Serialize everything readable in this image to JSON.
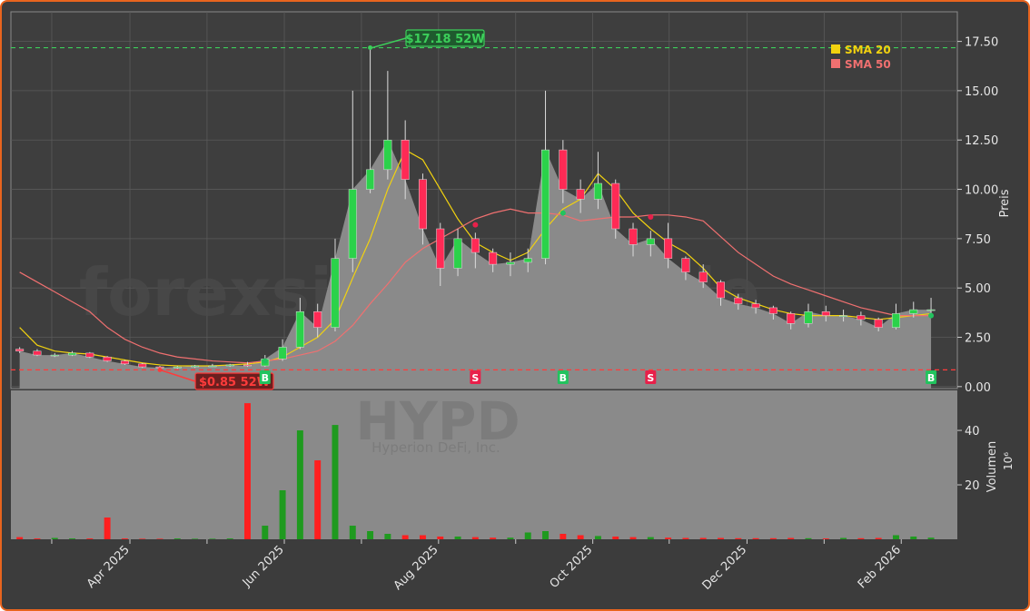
{
  "chart_data": {
    "type": "candlestick",
    "watermark": "forexsignale.trade",
    "ticker_watermark": "HYPD",
    "company_watermark": "Hyperion DeFi, Inc.",
    "y_label": "Preis",
    "volume_label": "Volumen",
    "volume_unit": "10⁶",
    "categories": [
      null,
      null,
      null,
      null,
      null,
      null,
      null,
      null,
      null,
      null,
      null,
      null,
      null,
      null,
      null,
      null,
      null,
      null,
      null,
      null,
      null,
      null,
      null,
      null,
      null,
      null,
      null,
      null,
      null,
      null,
      null,
      null,
      null,
      null,
      null,
      null,
      null,
      null,
      null,
      null,
      null,
      null,
      null,
      null,
      null,
      null,
      null,
      null,
      null,
      null,
      null,
      null,
      null
    ],
    "xlim": [
      -0.5,
      53.5
    ],
    "xticks": [
      {
        "value": 6.29,
        "label": "Apr 2025"
      },
      {
        "value": 15.1,
        "label": "Jun 2025"
      },
      {
        "value": 23.9,
        "label": "Aug 2025"
      },
      {
        "value": 32.7,
        "label": "Oct 2025"
      },
      {
        "value": 41.5,
        "label": "Dec 2025"
      },
      {
        "value": 50.3,
        "label": "Feb 2026"
      }
    ],
    "xminorticks": [
      1.83,
      10.69,
      19.5,
      28.3,
      37.06,
      45.9
    ],
    "open": [
      1.9,
      1.8,
      1.6,
      1.6,
      1.7,
      1.5,
      1.3,
      1.15,
      1.0,
      0.95,
      1.0,
      1.05,
      1.05,
      1.1,
      1.05,
      1.4,
      2.0,
      3.8,
      3.0,
      6.5,
      10.0,
      11.0,
      12.5,
      10.5,
      8.0,
      6.0,
      7.5,
      6.8,
      6.2,
      6.3,
      6.5,
      12.0,
      10.0,
      9.5,
      10.3,
      8.0,
      7.2,
      7.5,
      6.5,
      5.8,
      5.3,
      4.5,
      4.2,
      4.0,
      3.7,
      3.2,
      3.8,
      3.6,
      3.6,
      3.4,
      3.0,
      3.7,
      3.9
    ],
    "high": [
      2.0,
      1.9,
      1.7,
      1.8,
      1.75,
      1.55,
      1.35,
      1.2,
      1.05,
      1.05,
      1.1,
      1.15,
      1.15,
      1.25,
      1.6,
      2.4,
      4.5,
      4.2,
      7.5,
      15.0,
      17.18,
      16.0,
      13.5,
      10.8,
      8.3,
      8.0,
      7.8,
      7.0,
      6.8,
      7.0,
      15.0,
      12.5,
      10.5,
      11.9,
      10.5,
      8.3,
      7.9,
      8.3,
      6.6,
      6.2,
      5.4,
      4.7,
      4.4,
      4.1,
      3.8,
      4.2,
      4.1,
      3.9,
      3.8,
      3.5,
      4.2,
      4.3,
      4.5
    ],
    "low": [
      1.7,
      1.55,
      1.5,
      1.55,
      1.45,
      1.25,
      1.1,
      0.95,
      0.85,
      0.9,
      0.95,
      1.0,
      1.0,
      1.0,
      1.0,
      1.3,
      1.9,
      2.5,
      2.8,
      5.8,
      9.8,
      10.5,
      9.5,
      7.2,
      5.1,
      5.6,
      6.0,
      5.8,
      5.6,
      5.8,
      6.2,
      9.3,
      8.8,
      9.0,
      7.5,
      6.6,
      6.6,
      6.0,
      5.4,
      5.0,
      4.1,
      3.9,
      3.7,
      3.4,
      2.9,
      3.0,
      3.3,
      3.3,
      3.1,
      2.8,
      2.9,
      3.5,
      3.6
    ],
    "close": [
      1.8,
      1.6,
      1.6,
      1.7,
      1.5,
      1.3,
      1.15,
      1.0,
      0.95,
      1.0,
      1.05,
      1.05,
      1.1,
      1.05,
      1.4,
      2.0,
      3.8,
      3.0,
      6.5,
      10.0,
      11.0,
      12.5,
      10.5,
      8.0,
      6.0,
      7.5,
      6.8,
      6.2,
      6.3,
      6.5,
      12.0,
      10.0,
      9.5,
      10.3,
      8.0,
      7.2,
      7.5,
      6.5,
      5.8,
      5.3,
      4.5,
      4.2,
      4.0,
      3.7,
      3.2,
      3.8,
      3.6,
      3.6,
      3.4,
      3.0,
      3.7,
      3.9,
      3.9
    ],
    "up_color": "#2bd24a",
    "down_color": "#ff2a55",
    "area_color": "#8a8a8a",
    "series": [
      {
        "name": "SMA 20",
        "color": "#f2d20f",
        "values": [
          3.0,
          2.1,
          1.8,
          1.7,
          1.65,
          1.5,
          1.35,
          1.2,
          1.1,
          1.05,
          1.05,
          1.05,
          1.1,
          1.15,
          1.25,
          1.5,
          2.0,
          2.5,
          3.4,
          5.5,
          7.5,
          10.0,
          12.0,
          11.5,
          10.0,
          8.5,
          7.3,
          6.8,
          6.4,
          6.8,
          8.0,
          9.0,
          9.5,
          10.8,
          10.0,
          8.8,
          8.0,
          7.3,
          6.8,
          6.0,
          5.0,
          4.5,
          4.2,
          3.9,
          3.7,
          3.6,
          3.6,
          3.6,
          3.5,
          3.4,
          3.5,
          3.6,
          3.7
        ]
      },
      {
        "name": "SMA 50",
        "color": "#f07070",
        "values": [
          5.8,
          5.3,
          4.8,
          4.3,
          3.8,
          3.0,
          2.4,
          2.0,
          1.7,
          1.5,
          1.4,
          1.3,
          1.25,
          1.2,
          1.3,
          1.4,
          1.6,
          1.8,
          2.3,
          3.1,
          4.2,
          5.2,
          6.3,
          7.0,
          7.5,
          8.0,
          8.5,
          8.8,
          9.0,
          8.8,
          8.8,
          8.7,
          8.4,
          8.5,
          8.6,
          8.6,
          8.7,
          8.7,
          8.6,
          8.4,
          7.6,
          6.8,
          6.2,
          5.6,
          5.2,
          4.9,
          4.6,
          4.3,
          4.0,
          3.8,
          3.6,
          3.6,
          3.6
        ]
      }
    ],
    "volume": [
      0.8,
      0.3,
      0.5,
      0.3,
      0.3,
      8,
      0.3,
      0.2,
      0.2,
      0.3,
      0.2,
      0.2,
      0.3,
      50,
      5,
      18,
      40,
      29,
      42,
      5,
      3,
      2,
      1.5,
      1.5,
      1,
      1,
      0.8,
      0.6,
      0.6,
      2.5,
      3,
      2,
      1.5,
      1.2,
      1,
      0.8,
      0.8,
      0.6,
      0.5,
      0.5,
      0.5,
      0.4,
      0.4,
      0.4,
      0.5,
      0.4,
      0.3,
      0.5,
      0.4,
      0.5,
      1.5,
      1.0,
      0.6
    ],
    "ylim": [
      -0.1,
      19.0
    ],
    "yticks": [
      {
        "value": 0,
        "label": "0.00"
      },
      {
        "value": 2.5,
        "label": "2.50"
      },
      {
        "value": 5,
        "label": "5.00"
      },
      {
        "value": 7.5,
        "label": "7.50"
      },
      {
        "value": 10,
        "label": "10.00"
      },
      {
        "value": 12.5,
        "label": "12.50"
      },
      {
        "value": 15,
        "label": "15.00"
      },
      {
        "value": 17.5,
        "label": "17.50"
      }
    ],
    "volume_ylim": [
      0,
      54.7
    ],
    "volume_yticks": [
      20,
      40
    ],
    "grid": true,
    "legend": "upper right",
    "high_52w": {
      "value": 17.18,
      "label": "$17.18 52W",
      "color": "#3ccf5a"
    },
    "low_52w": {
      "value": 0.85,
      "label": "$0.85 52W",
      "color": "#ff3b3b"
    },
    "signal_labels": [
      null,
      null,
      null,
      null,
      null,
      null,
      null,
      null,
      null,
      null,
      null,
      null,
      null,
      null,
      "B",
      null,
      null,
      null,
      null,
      null,
      null,
      null,
      null,
      null,
      null,
      null,
      "S",
      null,
      null,
      null,
      null,
      "B",
      null,
      null,
      null,
      null,
      "S",
      null,
      null,
      null,
      null,
      null,
      null,
      null,
      null,
      null,
      null,
      null,
      null,
      null,
      null,
      null,
      "B"
    ],
    "signal_prices": [
      null,
      null,
      null,
      null,
      null,
      null,
      null,
      null,
      null,
      null,
      null,
      null,
      null,
      null,
      1.3,
      null,
      null,
      null,
      null,
      null,
      null,
      null,
      null,
      null,
      null,
      null,
      8.2,
      null,
      null,
      null,
      null,
      8.8,
      null,
      null,
      null,
      null,
      8.6,
      null,
      null,
      null,
      null,
      null,
      null,
      null,
      null,
      null,
      null,
      null,
      null,
      null,
      null,
      null,
      3.6
    ]
  }
}
